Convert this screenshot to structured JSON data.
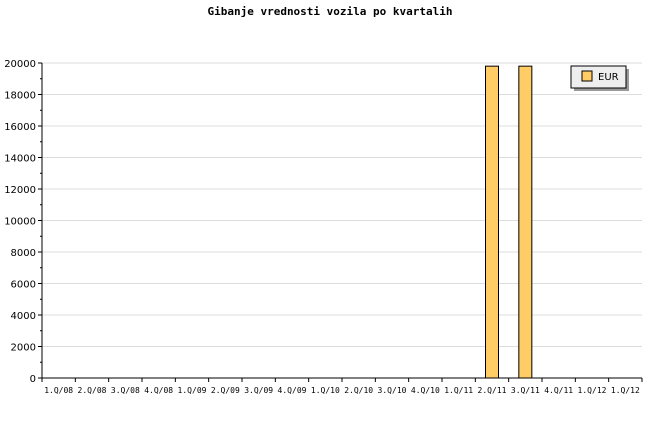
{
  "chart_data": {
    "type": "bar",
    "title": "Gibanje vrednosti vozila po kvartalih",
    "categories": [
      "1.Q/08",
      "2.Q/08",
      "3.Q/08",
      "4.Q/08",
      "1.Q/09",
      "2.Q/09",
      "3.Q/09",
      "4.Q/09",
      "1.Q/10",
      "2.Q/10",
      "3.Q/10",
      "4.Q/10",
      "1.Q/11",
      "2.Q/11",
      "3.Q/11",
      "4.Q/11",
      "1.Q/12",
      "1.Q/12"
    ],
    "series": [
      {
        "name": "EUR",
        "values": [
          0,
          0,
          0,
          0,
          0,
          0,
          0,
          0,
          0,
          0,
          0,
          0,
          0,
          19800,
          19800,
          0,
          0,
          0
        ],
        "color": "#ffcc66"
      }
    ],
    "yticks": [
      0,
      2000,
      4000,
      6000,
      8000,
      10000,
      12000,
      14000,
      16000,
      18000,
      20000
    ],
    "ylim": [
      0,
      20000
    ],
    "grid": true,
    "legend": "top-right"
  }
}
